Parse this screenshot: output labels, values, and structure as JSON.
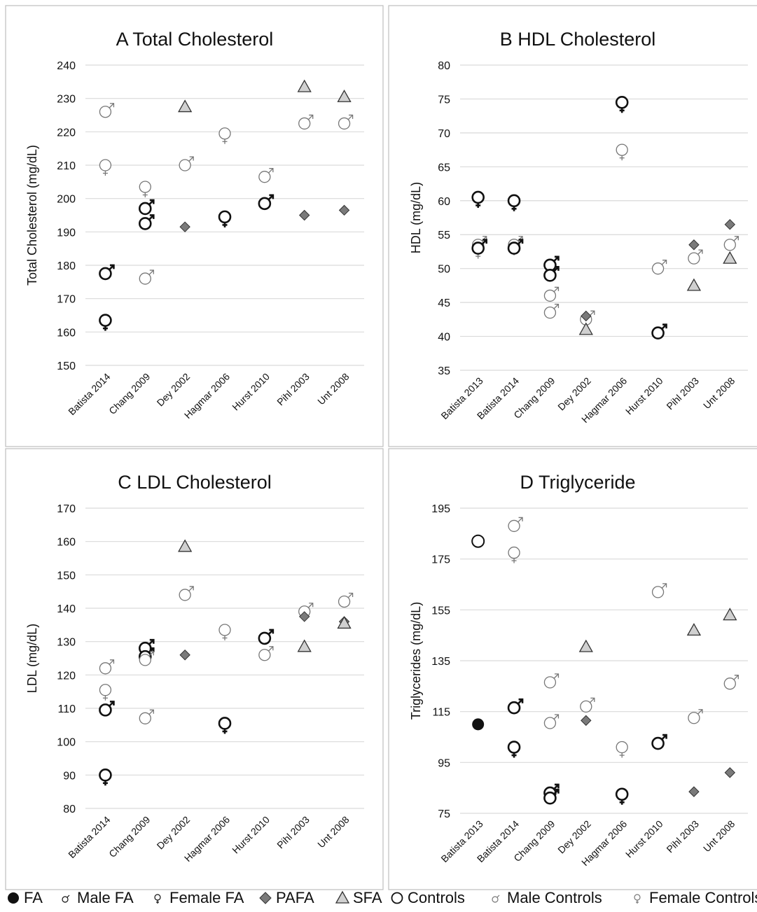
{
  "legend": [
    {
      "key": "FA",
      "symbol": "dot-filled",
      "label": "FA"
    },
    {
      "key": "MFA",
      "symbol": "male-bold",
      "label": "Male FA"
    },
    {
      "key": "FFA",
      "symbol": "female-bold",
      "label": "Female FA"
    },
    {
      "key": "PAFA",
      "symbol": "diamond",
      "label": "PAFA"
    },
    {
      "key": "SFA",
      "symbol": "triangle",
      "label": "SFA"
    },
    {
      "key": "C",
      "symbol": "circle-open",
      "label": "Controls"
    },
    {
      "key": "MC",
      "symbol": "male-light",
      "label": "Male Controls"
    },
    {
      "key": "FC",
      "symbol": "female-light",
      "label": "Female Controls"
    }
  ],
  "colors": {
    "dark": "#111111",
    "light": "#777777",
    "grid": "#d9d9d9",
    "diamond": "#7a7a7a",
    "triangle": "#d0d0d0",
    "panel_border": "#bfbfbf"
  },
  "chart_data": [
    {
      "type": "scatter",
      "title": "A  Total Cholesterol",
      "ylabel": "Total Cholesterol (mg/dL)",
      "ylim": [
        150,
        240
      ],
      "yticks": [
        150,
        160,
        170,
        180,
        190,
        200,
        210,
        220,
        230,
        240
      ],
      "grid": true,
      "categories": [
        "Batista 2014",
        "Chang 2009",
        "Dey 2002",
        "Hagmar 2006",
        "Hurst 2010",
        "Pihl 2003",
        "Unt 2008"
      ],
      "points": [
        {
          "category": "Batista 2014",
          "series": "MC",
          "y": 226
        },
        {
          "category": "Batista 2014",
          "series": "FC",
          "y": 210
        },
        {
          "category": "Batista 2014",
          "series": "MFA",
          "y": 177.5
        },
        {
          "category": "Batista 2014",
          "series": "FFA",
          "y": 163.5
        },
        {
          "category": "Chang 2009",
          "series": "FC",
          "y": 203.5
        },
        {
          "category": "Chang 2009",
          "series": "MFA",
          "y": 197
        },
        {
          "category": "Chang 2009",
          "series": "MFA",
          "y": 192.5
        },
        {
          "category": "Chang 2009",
          "series": "MC",
          "y": 176
        },
        {
          "category": "Dey 2002",
          "series": "SFA",
          "y": 227.5
        },
        {
          "category": "Dey 2002",
          "series": "MC",
          "y": 210
        },
        {
          "category": "Dey 2002",
          "series": "PAFA",
          "y": 191.5
        },
        {
          "category": "Hagmar 2006",
          "series": "FC",
          "y": 219.5
        },
        {
          "category": "Hagmar 2006",
          "series": "FFA",
          "y": 194.5
        },
        {
          "category": "Hurst 2010",
          "series": "MC",
          "y": 206.5
        },
        {
          "category": "Hurst 2010",
          "series": "MFA",
          "y": 198.5
        },
        {
          "category": "Pihl 2003",
          "series": "SFA",
          "y": 233.5
        },
        {
          "category": "Pihl 2003",
          "series": "MC",
          "y": 222.5
        },
        {
          "category": "Pihl 2003",
          "series": "PAFA",
          "y": 195
        },
        {
          "category": "Unt 2008",
          "series": "SFA",
          "y": 230.5
        },
        {
          "category": "Unt 2008",
          "series": "MC",
          "y": 222.5
        },
        {
          "category": "Unt 2008",
          "series": "PAFA",
          "y": 196.5
        }
      ]
    },
    {
      "type": "scatter",
      "title": "B  HDL Cholesterol",
      "ylabel": "HDL (mg/dL)",
      "ylim": [
        35,
        80
      ],
      "yticks": [
        35,
        40,
        45,
        50,
        55,
        60,
        65,
        70,
        75,
        80
      ],
      "grid": true,
      "categories": [
        "Batista 2013",
        "Batista 2014",
        "Chang 2009",
        "Dey 2002",
        "Hagmar 2006",
        "Hurst 2010",
        "Pihl 2003",
        "Unt 2008"
      ],
      "points": [
        {
          "category": "Batista 2013",
          "series": "FFA",
          "y": 60.5
        },
        {
          "category": "Batista 2013",
          "series": "MC",
          "y": 53.5
        },
        {
          "category": "Batista 2013",
          "series": "FC",
          "y": 53
        },
        {
          "category": "Batista 2013",
          "series": "MFA",
          "y": 53
        },
        {
          "category": "Batista 2014",
          "series": "FFA",
          "y": 60
        },
        {
          "category": "Batista 2014",
          "series": "MC",
          "y": 53.5
        },
        {
          "category": "Batista 2014",
          "series": "FC",
          "y": 53.5
        },
        {
          "category": "Batista 2014",
          "series": "MFA",
          "y": 53
        },
        {
          "category": "Chang 2009",
          "series": "MFA",
          "y": 50.5
        },
        {
          "category": "Chang 2009",
          "series": "MFA",
          "y": 49
        },
        {
          "category": "Chang 2009",
          "series": "MC",
          "y": 46
        },
        {
          "category": "Chang 2009",
          "series": "MC",
          "y": 43.5
        },
        {
          "category": "Dey 2002",
          "series": "MC",
          "y": 42.5
        },
        {
          "category": "Dey 2002",
          "series": "PAFA",
          "y": 43
        },
        {
          "category": "Dey 2002",
          "series": "SFA",
          "y": 41
        },
        {
          "category": "Hagmar 2006",
          "series": "FFA",
          "y": 74.5
        },
        {
          "category": "Hagmar 2006",
          "series": "FC",
          "y": 67.5
        },
        {
          "category": "Hurst 2010",
          "series": "MC",
          "y": 50
        },
        {
          "category": "Hurst 2010",
          "series": "MFA",
          "y": 40.5
        },
        {
          "category": "Pihl 2003",
          "series": "PAFA",
          "y": 53.5
        },
        {
          "category": "Pihl 2003",
          "series": "MC",
          "y": 51.5
        },
        {
          "category": "Pihl 2003",
          "series": "SFA",
          "y": 47.5
        },
        {
          "category": "Unt 2008",
          "series": "PAFA",
          "y": 56.5
        },
        {
          "category": "Unt 2008",
          "series": "MC",
          "y": 53.5
        },
        {
          "category": "Unt 2008",
          "series": "SFA",
          "y": 51.5
        }
      ]
    },
    {
      "type": "scatter",
      "title": "C  LDL Cholesterol",
      "ylabel": "LDL (mg/dL)",
      "ylim": [
        80,
        170
      ],
      "yticks": [
        80,
        90,
        100,
        110,
        120,
        130,
        140,
        150,
        160,
        170
      ],
      "grid": true,
      "categories": [
        "Batista 2014",
        "Chang 2009",
        "Dey 2002",
        "Hagmar 2006",
        "Hurst 2010",
        "Pihl 2003",
        "Unt 2008"
      ],
      "points": [
        {
          "category": "Batista 2014",
          "series": "MC",
          "y": 122
        },
        {
          "category": "Batista 2014",
          "series": "FC",
          "y": 115.5
        },
        {
          "category": "Batista 2014",
          "series": "MFA",
          "y": 109.5
        },
        {
          "category": "Batista 2014",
          "series": "FFA",
          "y": 90
        },
        {
          "category": "Chang 2009",
          "series": "MFA",
          "y": 128
        },
        {
          "category": "Chang 2009",
          "series": "MFA",
          "y": 125.5
        },
        {
          "category": "Chang 2009",
          "series": "MC",
          "y": 124.5
        },
        {
          "category": "Chang 2009",
          "series": "MC",
          "y": 107
        },
        {
          "category": "Dey 2002",
          "series": "SFA",
          "y": 158.5
        },
        {
          "category": "Dey 2002",
          "series": "MC",
          "y": 144
        },
        {
          "category": "Dey 2002",
          "series": "PAFA",
          "y": 126
        },
        {
          "category": "Hagmar 2006",
          "series": "FC",
          "y": 133.5
        },
        {
          "category": "Hagmar 2006",
          "series": "FFA",
          "y": 105.5
        },
        {
          "category": "Hurst 2010",
          "series": "MFA",
          "y": 131
        },
        {
          "category": "Hurst 2010",
          "series": "MC",
          "y": 126
        },
        {
          "category": "Pihl 2003",
          "series": "MC",
          "y": 139
        },
        {
          "category": "Pihl 2003",
          "series": "PAFA",
          "y": 137.5
        },
        {
          "category": "Pihl 2003",
          "series": "SFA",
          "y": 128.5
        },
        {
          "category": "Unt 2008",
          "series": "MC",
          "y": 142
        },
        {
          "category": "Unt 2008",
          "series": "PAFA",
          "y": 136
        },
        {
          "category": "Unt 2008",
          "series": "SFA",
          "y": 135.5
        }
      ]
    },
    {
      "type": "scatter",
      "title": "D  Triglyceride",
      "ylabel": "Triglycerides (mg/dL)",
      "ylim": [
        75,
        195
      ],
      "yticks": [
        75,
        95,
        115,
        135,
        155,
        175,
        195
      ],
      "grid": true,
      "categories": [
        "Batista 2013",
        "Batista 2014",
        "Chang 2009",
        "Dey 2002",
        "Hagmar 2006",
        "Hurst 2010",
        "Pihl 2003",
        "Unt 2008"
      ],
      "points": [
        {
          "category": "Batista 2013",
          "series": "C",
          "y": 182
        },
        {
          "category": "Batista 2013",
          "series": "FA",
          "y": 110
        },
        {
          "category": "Batista 2014",
          "series": "MC",
          "y": 188
        },
        {
          "category": "Batista 2014",
          "series": "FC",
          "y": 177.5
        },
        {
          "category": "Batista 2014",
          "series": "MFA",
          "y": 116.5
        },
        {
          "category": "Batista 2014",
          "series": "FFA",
          "y": 101
        },
        {
          "category": "Chang 2009",
          "series": "MC",
          "y": 126.5
        },
        {
          "category": "Chang 2009",
          "series": "MC",
          "y": 110.5
        },
        {
          "category": "Chang 2009",
          "series": "MFA",
          "y": 83
        },
        {
          "category": "Chang 2009",
          "series": "MFA",
          "y": 81
        },
        {
          "category": "Dey 2002",
          "series": "SFA",
          "y": 140.5
        },
        {
          "category": "Dey 2002",
          "series": "MC",
          "y": 117
        },
        {
          "category": "Dey 2002",
          "series": "PAFA",
          "y": 111.5
        },
        {
          "category": "Hagmar 2006",
          "series": "FC",
          "y": 101
        },
        {
          "category": "Hagmar 2006",
          "series": "FFA",
          "y": 82.5
        },
        {
          "category": "Hurst 2010",
          "series": "MC",
          "y": 162
        },
        {
          "category": "Hurst 2010",
          "series": "MFA",
          "y": 102.5
        },
        {
          "category": "Pihl 2003",
          "series": "SFA",
          "y": 147
        },
        {
          "category": "Pihl 2003",
          "series": "MC",
          "y": 112.5
        },
        {
          "category": "Pihl 2003",
          "series": "PAFA",
          "y": 83.5
        },
        {
          "category": "Unt 2008",
          "series": "SFA",
          "y": 153
        },
        {
          "category": "Unt 2008",
          "series": "MC",
          "y": 126
        },
        {
          "category": "Unt 2008",
          "series": "PAFA",
          "y": 91
        }
      ]
    }
  ]
}
